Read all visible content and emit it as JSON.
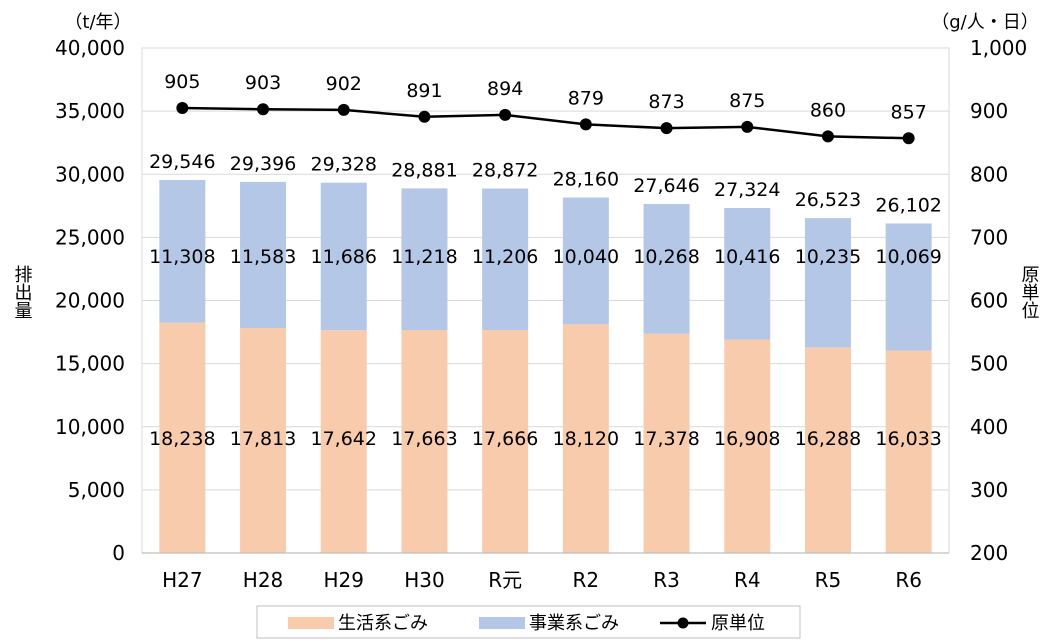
{
  "chart_data": {
    "type": "bar",
    "categories": [
      "H27",
      "H28",
      "H29",
      "H30",
      "R元",
      "R2",
      "R3",
      "R4",
      "R5",
      "R6"
    ],
    "series": [
      {
        "name": "生活系ごみ",
        "type": "stacked-bar",
        "axis": "left",
        "color": "#f8cbad",
        "values": [
          18238,
          17813,
          17642,
          17663,
          17666,
          18120,
          17378,
          16908,
          16288,
          16033
        ],
        "labels": [
          "18,238",
          "17,813",
          "17,642",
          "17,663",
          "17,666",
          "18,120",
          "17,378",
          "16,908",
          "16,288",
          "16,033"
        ]
      },
      {
        "name": "事業系ごみ",
        "type": "stacked-bar",
        "axis": "left",
        "color": "#b4c7e7",
        "values": [
          11308,
          11583,
          11686,
          11218,
          11206,
          10040,
          10268,
          10416,
          10235,
          10069
        ],
        "labels": [
          "11,308",
          "11,583",
          "11,686",
          "11,218",
          "11,206",
          "10,040",
          "10,268",
          "10,416",
          "10,235",
          "10,069"
        ]
      },
      {
        "name": "原単位",
        "type": "line",
        "axis": "right",
        "color": "#000000",
        "values": [
          905,
          903,
          902,
          891,
          894,
          879,
          873,
          875,
          860,
          857
        ],
        "labels": [
          "905",
          "903",
          "902",
          "891",
          "894",
          "879",
          "873",
          "875",
          "860",
          "857"
        ]
      }
    ],
    "totals": [
      29546,
      29396,
      29328,
      28881,
      28872,
      28160,
      27646,
      27324,
      26523,
      26102
    ],
    "total_labels": [
      "29,546",
      "29,396",
      "29,328",
      "28,881",
      "28,872",
      "28,160",
      "27,646",
      "27,324",
      "26,523",
      "26,102"
    ],
    "y_left": {
      "unit": "（t/年）",
      "label": "排出量",
      "lim": [
        0,
        40000
      ],
      "ticks": [
        0,
        5000,
        10000,
        15000,
        20000,
        25000,
        30000,
        35000,
        40000
      ],
      "tick_labels": [
        "0",
        "5,000",
        "10,000",
        "15,000",
        "20,000",
        "25,000",
        "30,000",
        "35,000",
        "40,000"
      ]
    },
    "y_right": {
      "unit": "（g/人・日）",
      "label": "原単位",
      "lim": [
        200,
        1000
      ],
      "ticks": [
        200,
        300,
        400,
        500,
        600,
        700,
        800,
        900,
        1000
      ],
      "tick_labels": [
        "200",
        "300",
        "400",
        "500",
        "600",
        "700",
        "800",
        "900",
        "1,000"
      ]
    },
    "grid": true,
    "legend_position": "bottom"
  }
}
